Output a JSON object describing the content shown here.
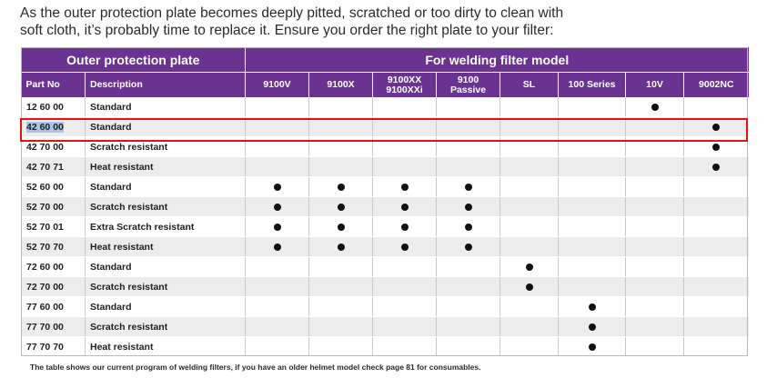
{
  "intro": {
    "line1": "As the outer protection plate becomes deeply pitted, scratched or too dirty to clean with",
    "line2": "soft cloth, it’s probably time to replace it. Ensure you order the right plate to your filter:"
  },
  "table": {
    "group_left": "Outer protection plate",
    "group_right": "For welding filter model",
    "col_part": "Part No",
    "col_desc": "Description",
    "models": [
      {
        "line1": "9100V",
        "line2": ""
      },
      {
        "line1": "9100X",
        "line2": ""
      },
      {
        "line1": "9100XX",
        "line2": "9100XXi"
      },
      {
        "line1": "9100",
        "line2": "Passive"
      },
      {
        "line1": "SL",
        "line2": ""
      },
      {
        "line1": "100 Series",
        "line2": ""
      },
      {
        "line1": "10V",
        "line2": ""
      },
      {
        "line1": "9002NC",
        "line2": ""
      }
    ],
    "rows": [
      {
        "part": "12 60 00",
        "desc": "Standard",
        "marks": [
          0,
          0,
          0,
          0,
          0,
          0,
          1,
          0
        ]
      },
      {
        "part": "42 60 00",
        "desc": "Standard",
        "marks": [
          0,
          0,
          0,
          0,
          0,
          0,
          0,
          1
        ]
      },
      {
        "part": "42 70 00",
        "desc": "Scratch resistant",
        "marks": [
          0,
          0,
          0,
          0,
          0,
          0,
          0,
          1
        ]
      },
      {
        "part": "42 70 71",
        "desc": "Heat resistant",
        "marks": [
          0,
          0,
          0,
          0,
          0,
          0,
          0,
          1
        ]
      },
      {
        "part": "52 60 00",
        "desc": "Standard",
        "marks": [
          1,
          1,
          1,
          1,
          0,
          0,
          0,
          0
        ]
      },
      {
        "part": "52 70 00",
        "desc": "Scratch resistant",
        "marks": [
          1,
          1,
          1,
          1,
          0,
          0,
          0,
          0
        ]
      },
      {
        "part": "52 70 01",
        "desc": "Extra Scratch resistant",
        "marks": [
          1,
          1,
          1,
          1,
          0,
          0,
          0,
          0
        ]
      },
      {
        "part": "52 70 70",
        "desc": "Heat resistant",
        "marks": [
          1,
          1,
          1,
          1,
          0,
          0,
          0,
          0
        ]
      },
      {
        "part": "72 60 00",
        "desc": "Standard",
        "marks": [
          0,
          0,
          0,
          0,
          1,
          0,
          0,
          0
        ]
      },
      {
        "part": "72 70 00",
        "desc": "Scratch resistant",
        "marks": [
          0,
          0,
          0,
          0,
          1,
          0,
          0,
          0
        ]
      },
      {
        "part": "77 60 00",
        "desc": "Standard",
        "marks": [
          0,
          0,
          0,
          0,
          0,
          1,
          0,
          0
        ]
      },
      {
        "part": "77 70 00",
        "desc": "Scratch resistant",
        "marks": [
          0,
          0,
          0,
          0,
          0,
          1,
          0,
          0
        ]
      },
      {
        "part": "77 70 70",
        "desc": "Heat resistant",
        "marks": [
          0,
          0,
          0,
          0,
          0,
          1,
          0,
          0
        ]
      }
    ],
    "highlighted_row": "42 60 00",
    "selected_text": "42 60 00"
  },
  "footnote": "The table shows our current program of welding filters, if you have an older helmet model check page 81 for consumables.",
  "colors": {
    "header_bg": "#6a3391",
    "highlight_border": "#e01414",
    "row_alt": "#ececec"
  }
}
